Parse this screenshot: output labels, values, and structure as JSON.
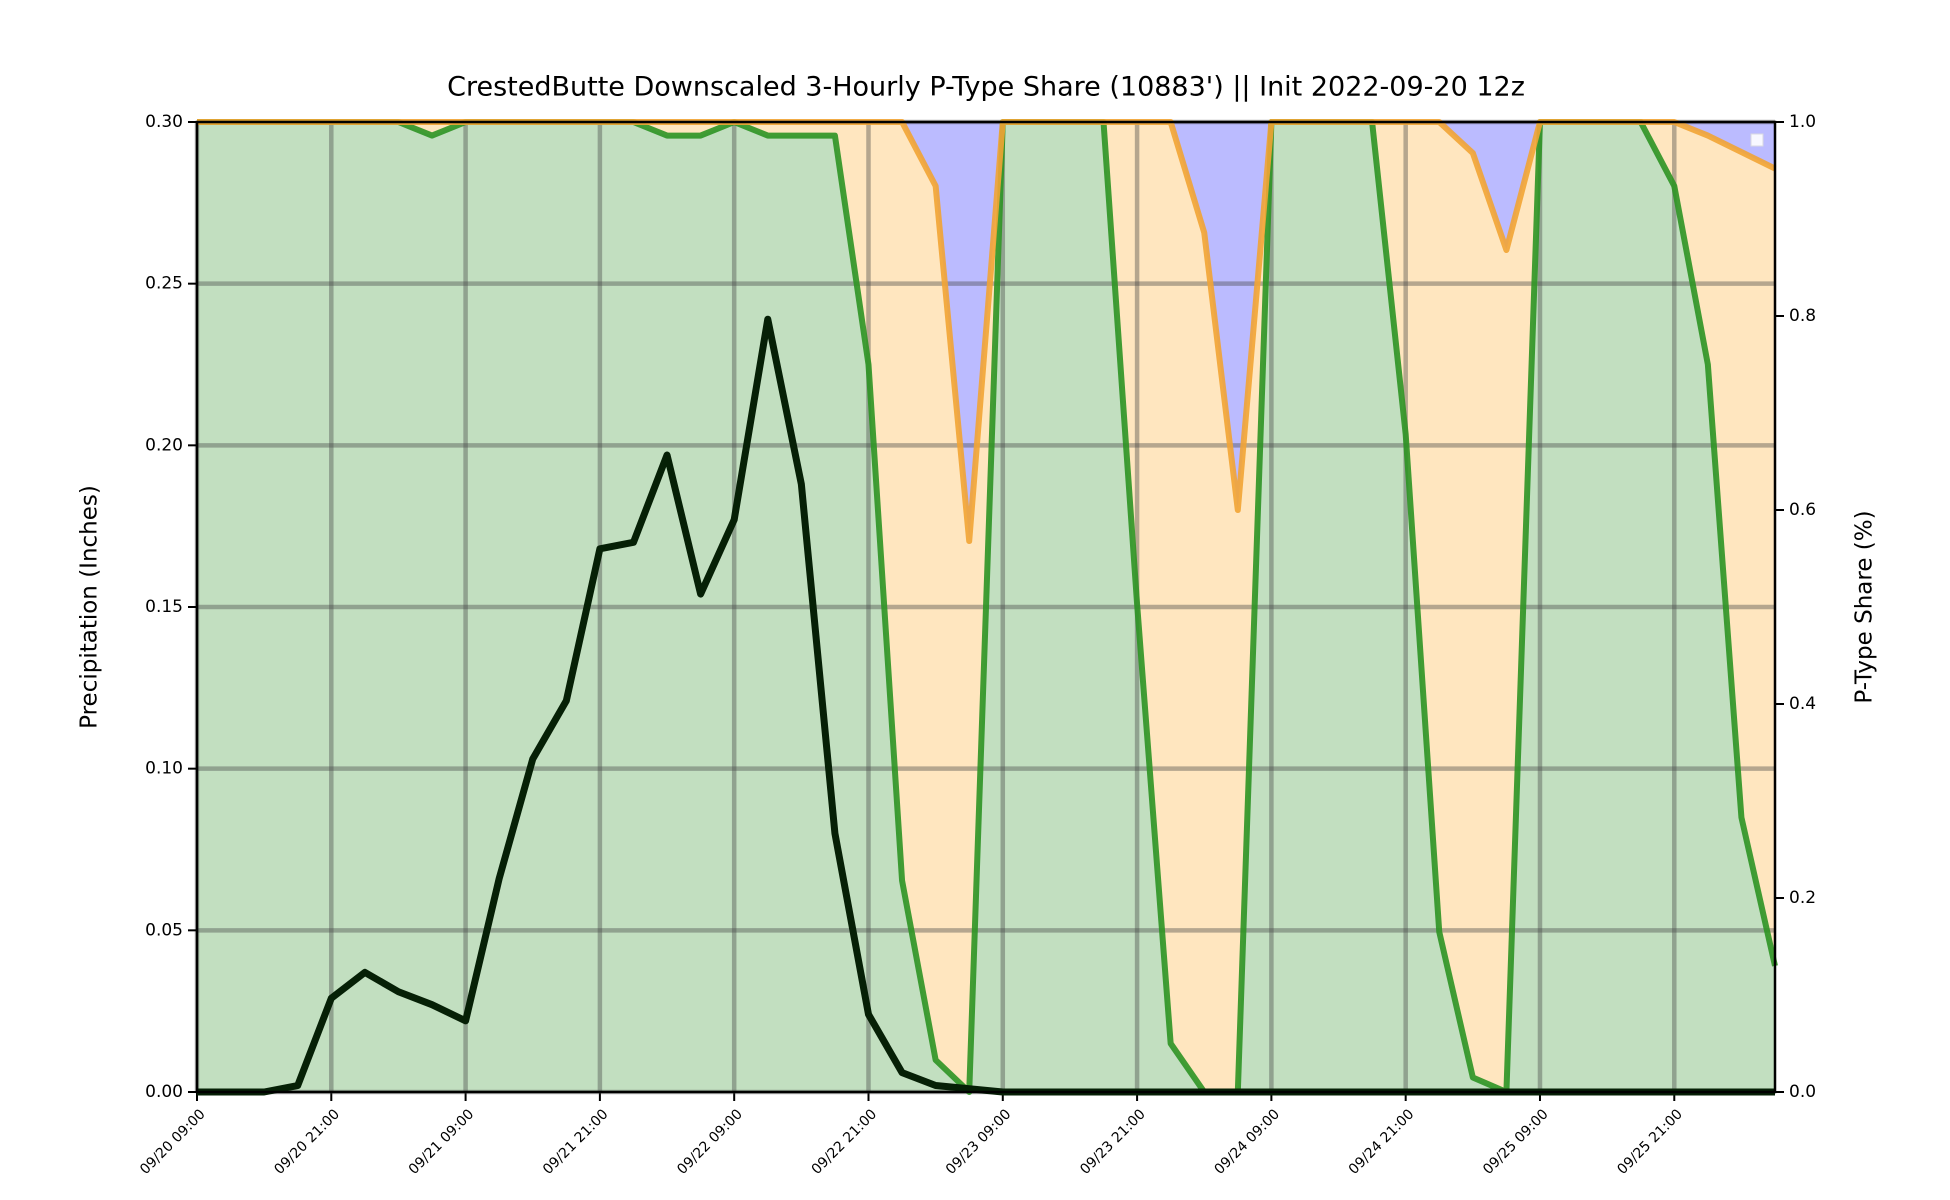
{
  "chart_data": {
    "type": "line",
    "title": "CrestedButte Downscaled 3-Hourly P-Type Share (10883') || Init 2022-09-20 12z",
    "y_label": "Precipitation (Inches)",
    "y2_label": "P-Type Share (%)",
    "categories": [
      "09/20 09:00",
      null,
      null,
      null,
      "09/20 21:00",
      null,
      null,
      null,
      "09/21 09:00",
      null,
      null,
      null,
      "09/21 21:00",
      null,
      null,
      null,
      "09/22 09:00",
      null,
      null,
      null,
      "09/22 21:00",
      null,
      null,
      null,
      "09/23 09:00",
      null,
      null,
      null,
      "09/23 21:00",
      null,
      null,
      null,
      "09/24 09:00",
      null,
      null,
      null,
      "09/24 21:00",
      null,
      null,
      null,
      "09/25 09:00",
      null,
      null,
      null,
      "09/25 21:00",
      null,
      null,
      null
    ],
    "ylim": [
      0,
      0.3
    ],
    "yticks": [
      {
        "value": 0,
        "label": "0.00"
      },
      {
        "value": 0.05,
        "label": "0.05"
      },
      {
        "value": 0.1,
        "label": "0.10"
      },
      {
        "value": 0.15,
        "label": "0.15"
      },
      {
        "value": 0.2,
        "label": "0.20"
      },
      {
        "value": 0.25,
        "label": "0.25"
      },
      {
        "value": 0.3,
        "label": "0.30"
      }
    ],
    "y2lim": [
      0,
      1
    ],
    "y2ticks": [
      {
        "value": 0,
        "label": "0.0"
      },
      {
        "value": 0.2,
        "label": "0.2"
      },
      {
        "value": 0.4,
        "label": "0.4"
      },
      {
        "value": 0.6,
        "label": "0.6"
      },
      {
        "value": 0.8,
        "label": "0.8"
      },
      {
        "value": 1,
        "label": "1.0"
      }
    ],
    "grid": true,
    "series": [
      {
        "kind": "area",
        "axis": "y2",
        "color": "#c2dfc0",
        "edge_color": "#2e9324",
        "values": [
          1,
          1,
          1,
          1,
          1,
          1,
          1,
          0.986,
          1,
          1,
          1,
          1,
          1,
          1,
          0.986,
          0.986,
          1,
          0.986,
          0.986,
          0.986,
          0.75,
          0.218,
          0.033,
          0,
          1,
          1,
          1,
          1,
          0.503,
          0.05,
          0,
          0,
          1,
          1,
          1,
          1,
          0.678,
          0.165,
          0.015,
          0,
          1,
          1,
          1,
          1,
          0.934,
          0.75,
          0.283,
          0.13
        ]
      },
      {
        "kind": "area",
        "axis": "y2",
        "color": "#ffe6bf",
        "edge_color": "#f2a434",
        "values": [
          0,
          0,
          0,
          0,
          0,
          0,
          0,
          0.014,
          0,
          0,
          0,
          0,
          0,
          0,
          0.014,
          0.014,
          0,
          0.014,
          0.014,
          0.014,
          0.25,
          0.782,
          0.901,
          0.568,
          0,
          0,
          0,
          0,
          0.497,
          0.95,
          0.886,
          0.6,
          0,
          0,
          0,
          0,
          0.322,
          0.835,
          0.953,
          0.868,
          0,
          0,
          0,
          0,
          0.066,
          0.236,
          0.686,
          0.822
        ]
      },
      {
        "kind": "area",
        "axis": "y2",
        "color": "#bbbbff",
        "values": [
          0,
          0,
          0,
          0,
          0,
          0,
          0,
          0,
          0,
          0,
          0,
          0,
          0,
          0,
          0,
          0,
          0,
          0,
          0,
          0,
          0,
          0,
          0.066,
          0.432,
          0,
          0,
          0,
          0,
          0,
          0,
          0.114,
          0.4,
          0,
          0,
          0,
          0,
          0,
          0,
          0.032,
          0.132,
          0,
          0,
          0,
          0,
          0,
          0.014,
          0.031,
          0.048
        ]
      },
      {
        "kind": "line",
        "axis": "y",
        "color": "#062006",
        "values": [
          0,
          0,
          0,
          0.002,
          0.029,
          0.037,
          0.031,
          0.027,
          0.022,
          0.066,
          0.103,
          0.121,
          0.168,
          0.17,
          0.197,
          0.154,
          0.177,
          0.239,
          0.188,
          0.08,
          0.024,
          0.006,
          0.002,
          0.001,
          0,
          0,
          0,
          0,
          0,
          0,
          0,
          0,
          0,
          0,
          0,
          0,
          0,
          0,
          0,
          0,
          0,
          0,
          0,
          0,
          0,
          0,
          0,
          0
        ]
      }
    ]
  }
}
